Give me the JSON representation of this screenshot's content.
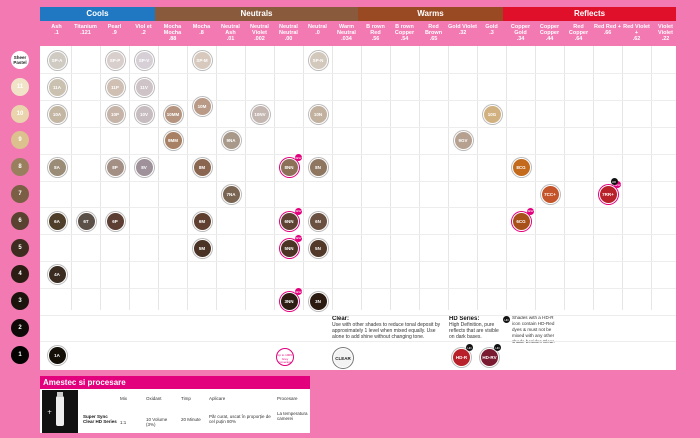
{
  "families": [
    {
      "name": "Cools",
      "color": "#1f78c1"
    },
    {
      "name": "Neutrals",
      "color": "#8a5a3c"
    },
    {
      "name": "Warms",
      "color": "#9a4a22"
    },
    {
      "name": "Reflects",
      "color": "#e0102a"
    }
  ],
  "columns": [
    {
      "name": "Ash",
      "code": ".1"
    },
    {
      "name": "Titanium",
      "code": ".121"
    },
    {
      "name": "Pearl",
      "code": ".9"
    },
    {
      "name": "Viol et",
      "code": ".2"
    },
    {
      "name": "Mocha Mocha",
      "code": ".88"
    },
    {
      "name": "Mocha",
      "code": ".8"
    },
    {
      "name": "Neutral Ash",
      "code": ".01"
    },
    {
      "name": "Neutral Violet",
      "code": ".002"
    },
    {
      "name": "Neutral Neutral",
      "code": ".00"
    },
    {
      "name": "Neutral",
      "code": ".0"
    },
    {
      "name": "Warm Neutral",
      "code": ".034"
    },
    {
      "name": "B rown Red",
      "code": ".56"
    },
    {
      "name": "B rown Copper",
      "code": ".54"
    },
    {
      "name": "Red Brown",
      "code": ".65"
    },
    {
      "name": "Gold Violet",
      "code": ".32"
    },
    {
      "name": "Gold",
      "code": ".3"
    },
    {
      "name": "Copper Gold",
      "code": ".34"
    },
    {
      "name": "Copper Copper",
      "code": ".44"
    },
    {
      "name": "Red Copper",
      "code": ".64"
    },
    {
      "name": "Red Red +",
      "code": ".66"
    },
    {
      "name": "Red Violet +",
      "code": ".62"
    },
    {
      "name": "Violet Violet",
      "code": ".22"
    }
  ],
  "levels": [
    "Sheer Pastel",
    "11",
    "10",
    "9",
    "8",
    "7",
    "6",
    "5",
    "4",
    "3",
    "2",
    "1"
  ],
  "level_colors": [
    "#ffffff",
    "#f1e3c8",
    "#e9d4ae",
    "#dcc08e",
    "#9a7f5e",
    "#7a5f44",
    "#5a4230",
    "#3f2c20",
    "#2b1d14",
    "#1d130d",
    "#0f0a07",
    "#050302"
  ],
  "swatches": [
    {
      "label": "SP-A",
      "col": 0,
      "row": 0,
      "color": "#cfcbc3"
    },
    {
      "label": "SP-P",
      "col": 2,
      "row": 0,
      "color": "#d8cfcc"
    },
    {
      "label": "SP-V",
      "col": 3,
      "row": 0,
      "color": "#d6d0d6"
    },
    {
      "label": "SP-M",
      "col": 5,
      "row": 0,
      "color": "#d7c9bd"
    },
    {
      "label": "SP-N",
      "col": 9,
      "row": 0,
      "color": "#d3c8bc"
    },
    {
      "label": "11A",
      "col": 0,
      "row": 1,
      "color": "#cbc1b0"
    },
    {
      "label": "11P",
      "col": 2,
      "row": 1,
      "color": "#d0c0b4"
    },
    {
      "label": "11V",
      "col": 3,
      "row": 1,
      "color": "#cec4c8"
    },
    {
      "label": "10A",
      "col": 0,
      "row": 2,
      "color": "#c3b7a4"
    },
    {
      "label": "10P",
      "col": 2,
      "row": 2,
      "color": "#c7b4a8"
    },
    {
      "label": "10V",
      "col": 3,
      "row": 2,
      "color": "#c7bcc0"
    },
    {
      "label": "10MM",
      "col": 4,
      "row": 2,
      "color": "#b59580"
    },
    {
      "label": "10M",
      "col": 5,
      "row": 1.7,
      "color": "#b99a86"
    },
    {
      "label": "10NV",
      "col": 7,
      "row": 2,
      "color": "#c4b6b0"
    },
    {
      "label": "10N",
      "col": 9,
      "row": 2,
      "color": "#c1b19e"
    },
    {
      "label": "10G",
      "col": 15,
      "row": 2,
      "color": "#d2b180"
    },
    {
      "label": "9MM",
      "col": 4,
      "row": 3,
      "color": "#a88064"
    },
    {
      "label": "9NA",
      "col": 6,
      "row": 3,
      "color": "#a8998a"
    },
    {
      "label": "9GV",
      "col": 14,
      "row": 3,
      "color": "#b6a090"
    },
    {
      "label": "8A",
      "col": 0,
      "row": 4,
      "color": "#9b8c78"
    },
    {
      "label": "8P",
      "col": 2,
      "row": 4,
      "color": "#a38f84"
    },
    {
      "label": "8V",
      "col": 3,
      "row": 4,
      "color": "#9f9199"
    },
    {
      "label": "8M",
      "col": 5,
      "row": 4,
      "color": "#8a6650"
    },
    {
      "label": "8NN",
      "col": 8,
      "row": 4,
      "color": "#8c7058",
      "new": true
    },
    {
      "label": "8N",
      "col": 9,
      "row": 4,
      "color": "#8e7660"
    },
    {
      "label": "8CG",
      "col": 16,
      "row": 4,
      "color": "#c46a1c"
    },
    {
      "label": "7NA",
      "col": 6,
      "row": 5,
      "color": "#7a6552"
    },
    {
      "label": "7CC+",
      "col": 17,
      "row": 5,
      "color": "#c4552a"
    },
    {
      "label": "7RR+",
      "col": 19,
      "row": 5,
      "color": "#b8202a",
      "new": true,
      "hd": true
    },
    {
      "label": "6A",
      "col": 0,
      "row": 6,
      "color": "#4e3e2a"
    },
    {
      "label": "6T",
      "col": 1,
      "row": 6,
      "color": "#5b5048"
    },
    {
      "label": "6P",
      "col": 2,
      "row": 6,
      "color": "#5c3e32"
    },
    {
      "label": "6M",
      "col": 5,
      "row": 6,
      "color": "#5f4030"
    },
    {
      "label": "6NN",
      "col": 8,
      "row": 6,
      "color": "#5e4232",
      "new": true
    },
    {
      "label": "6N",
      "col": 9,
      "row": 6,
      "color": "#6a5040"
    },
    {
      "label": "6CG",
      "col": 16,
      "row": 6,
      "color": "#a8501a",
      "new": true
    },
    {
      "label": "5NN",
      "col": 8,
      "row": 7,
      "color": "#4c3424",
      "new": true
    },
    {
      "label": "5M",
      "col": 5,
      "row": 7,
      "color": "#4a3224"
    },
    {
      "label": "5N",
      "col": 9,
      "row": 7,
      "color": "#52392a"
    },
    {
      "label": "4A",
      "col": 0,
      "row": 8,
      "color": "#3a2c20"
    },
    {
      "label": "3NN",
      "col": 8,
      "row": 9,
      "color": "#2c1c12",
      "new": true
    },
    {
      "label": "3N",
      "col": 9,
      "row": 9,
      "color": "#2a1a10"
    },
    {
      "label": "1A",
      "col": 0,
      "row": 11,
      "color": "#141008"
    }
  ],
  "clear_note": {
    "title": "Clear:",
    "text": "Use with other shades to reduce tonal deposit by approximately 1 level when mixed equally. Use alone to add shine without changing tone.",
    "swatch_label": "CLEAR"
  },
  "hd_note": {
    "title": "HD Series:",
    "text": "High Definition, pure reflects that are visible on dark bases.",
    "hd_r": "HD-R",
    "hd_rv": "HD-RV"
  },
  "hd_info": "Shades with a HD-R icon contain HD-Red dyes & must not be mixed with any other shade besides Clear.",
  "coverage_note": "Up to 100% Grey Coverage",
  "badge_new": "NEW",
  "badge_hd": "HD",
  "mix_table": {
    "title": "Amestec si procesare",
    "headers": [
      "Mix",
      "Oxidant",
      "Timp",
      "Aplicare",
      "Procesare"
    ],
    "product": "Super Sync Clear HD Series",
    "row": [
      "1:1",
      "10 Volume (3%)",
      "20 Minute",
      "Pãr curat, uscat în proporție de cel puțin 80%",
      "La temperatura camerei"
    ]
  }
}
